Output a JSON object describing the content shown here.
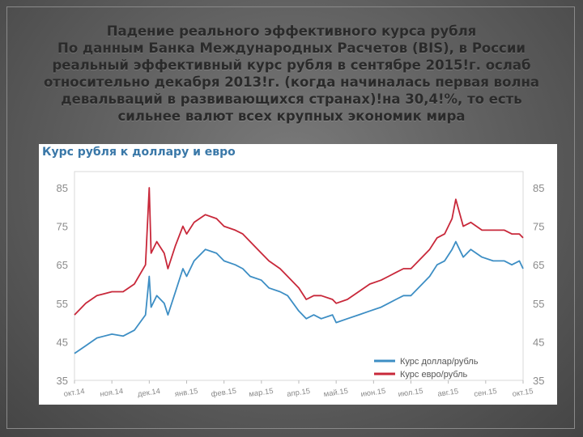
{
  "slide": {
    "title_lines": [
      "Падение реального эффективного курса рубля",
      "По данным Банка Международных Расчетов (BIS), в России",
      "реальный эффективный курс рубля в сентябре 2015!г. ослаб",
      "относительно декабря 2013!г. (когда начиналась первая волна",
      "девальваций в развивающихся странах)!на 30,4!%, то есть",
      "сильнее валют всех крупных экономик мира"
    ]
  },
  "chart_data": {
    "type": "line",
    "title": "Курс рубля к доллару и евро",
    "xlabel": "",
    "ylabel": "",
    "ylim": [
      35,
      85
    ],
    "yticks": [
      35,
      45,
      55,
      65,
      75,
      85
    ],
    "y_axis_both_sides": true,
    "grid": false,
    "legend_position": "bottom-right",
    "x_tick_labels": [
      "окт.14",
      "ноя.14",
      "дек.14",
      "янв.15",
      "фев.15",
      "мар.15",
      "апр.15",
      "май.15",
      "июн.15",
      "июл.15",
      "авг.15",
      "сен.15",
      "окт.15"
    ],
    "series": [
      {
        "name": "Курс доллар/рубль",
        "color": "#3d8ec4",
        "points": [
          [
            0,
            42
          ],
          [
            0.3,
            44
          ],
          [
            0.6,
            46
          ],
          [
            1.0,
            47
          ],
          [
            1.3,
            46.5
          ],
          [
            1.6,
            48
          ],
          [
            1.9,
            52
          ],
          [
            2.0,
            62
          ],
          [
            2.05,
            54
          ],
          [
            2.2,
            57
          ],
          [
            2.4,
            55
          ],
          [
            2.5,
            52
          ],
          [
            2.7,
            58
          ],
          [
            2.9,
            64
          ],
          [
            3.0,
            62
          ],
          [
            3.2,
            66
          ],
          [
            3.5,
            69
          ],
          [
            3.8,
            68
          ],
          [
            4.0,
            66
          ],
          [
            4.3,
            65
          ],
          [
            4.5,
            64
          ],
          [
            4.7,
            62
          ],
          [
            5.0,
            61
          ],
          [
            5.2,
            59
          ],
          [
            5.5,
            58
          ],
          [
            5.7,
            57
          ],
          [
            6.0,
            53
          ],
          [
            6.2,
            51
          ],
          [
            6.4,
            52
          ],
          [
            6.6,
            51
          ],
          [
            6.9,
            52
          ],
          [
            7.0,
            50
          ],
          [
            7.3,
            51
          ],
          [
            7.6,
            52
          ],
          [
            7.9,
            53
          ],
          [
            8.2,
            54
          ],
          [
            8.4,
            55
          ],
          [
            8.6,
            56
          ],
          [
            8.8,
            57
          ],
          [
            9.0,
            57
          ],
          [
            9.3,
            60
          ],
          [
            9.5,
            62
          ],
          [
            9.7,
            65
          ],
          [
            9.9,
            66
          ],
          [
            10.1,
            69
          ],
          [
            10.2,
            71
          ],
          [
            10.4,
            67
          ],
          [
            10.6,
            69
          ],
          [
            10.9,
            67
          ],
          [
            11.2,
            66
          ],
          [
            11.5,
            66
          ],
          [
            11.7,
            65
          ],
          [
            11.9,
            66
          ],
          [
            12.0,
            64
          ]
        ]
      },
      {
        "name": "Курс евро/рубль",
        "color": "#c8283a",
        "points": [
          [
            0,
            52
          ],
          [
            0.3,
            55
          ],
          [
            0.6,
            57
          ],
          [
            1.0,
            58
          ],
          [
            1.3,
            58
          ],
          [
            1.6,
            60
          ],
          [
            1.9,
            65
          ],
          [
            2.0,
            85
          ],
          [
            2.05,
            68
          ],
          [
            2.2,
            71
          ],
          [
            2.4,
            68
          ],
          [
            2.5,
            64
          ],
          [
            2.7,
            70
          ],
          [
            2.9,
            75
          ],
          [
            3.0,
            73
          ],
          [
            3.2,
            76
          ],
          [
            3.5,
            78
          ],
          [
            3.8,
            77
          ],
          [
            4.0,
            75
          ],
          [
            4.3,
            74
          ],
          [
            4.5,
            73
          ],
          [
            4.7,
            71
          ],
          [
            5.0,
            68
          ],
          [
            5.2,
            66
          ],
          [
            5.5,
            64
          ],
          [
            5.7,
            62
          ],
          [
            6.0,
            59
          ],
          [
            6.2,
            56
          ],
          [
            6.4,
            57
          ],
          [
            6.6,
            57
          ],
          [
            6.9,
            56
          ],
          [
            7.0,
            55
          ],
          [
            7.3,
            56
          ],
          [
            7.6,
            58
          ],
          [
            7.9,
            60
          ],
          [
            8.2,
            61
          ],
          [
            8.4,
            62
          ],
          [
            8.6,
            63
          ],
          [
            8.8,
            64
          ],
          [
            9.0,
            64
          ],
          [
            9.3,
            67
          ],
          [
            9.5,
            69
          ],
          [
            9.7,
            72
          ],
          [
            9.9,
            73
          ],
          [
            10.1,
            77
          ],
          [
            10.2,
            82
          ],
          [
            10.4,
            75
          ],
          [
            10.6,
            76
          ],
          [
            10.9,
            74
          ],
          [
            11.2,
            74
          ],
          [
            11.5,
            74
          ],
          [
            11.7,
            73
          ],
          [
            11.9,
            73
          ],
          [
            12.0,
            72
          ]
        ]
      }
    ]
  }
}
